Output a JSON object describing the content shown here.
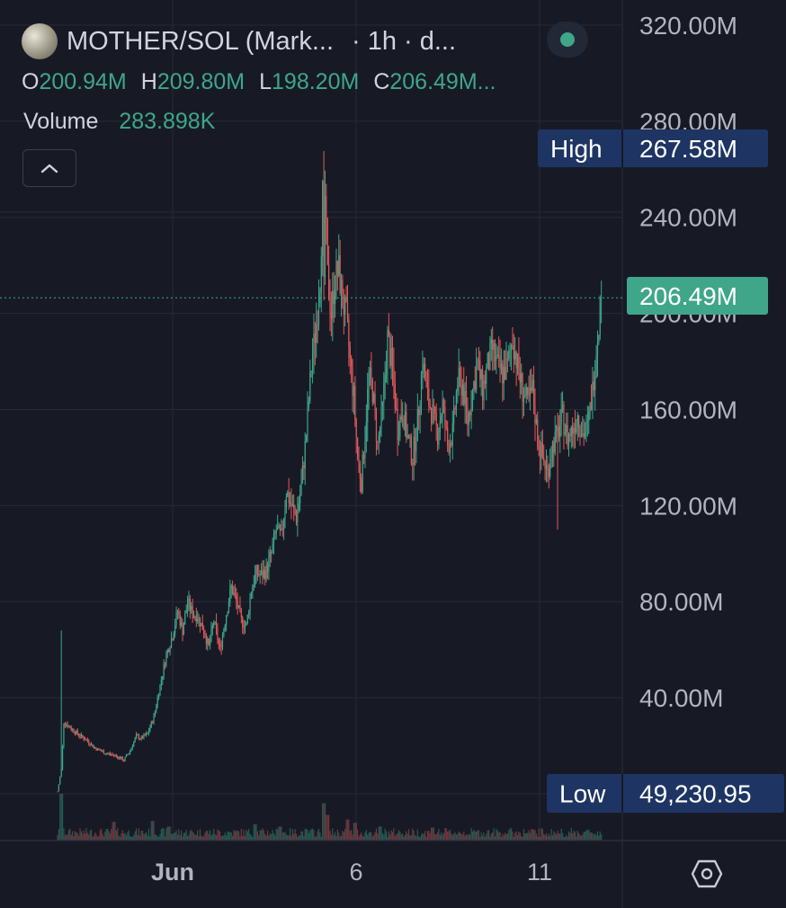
{
  "header": {
    "title": "MOTHER/SOL (Mark...",
    "interval": "· 1h · d...",
    "status_color": "#3fa68a"
  },
  "ohlc": [
    {
      "key": "O",
      "value": "200.94M"
    },
    {
      "key": "H",
      "value": "209.80M"
    },
    {
      "key": "L",
      "value": "198.20M"
    },
    {
      "key": "C",
      "value": "206.49M..."
    }
  ],
  "volume": {
    "label": "Volume",
    "value": "283.898K"
  },
  "colors": {
    "up": "#3fa68a",
    "down": "#e05a5a",
    "background": "#171a25",
    "grid": "#262a36",
    "marker": "#1e3564"
  },
  "icons": {
    "collapse": "chevron-up-icon",
    "settings": "hexagon-settings-icon"
  },
  "chart_data": {
    "type": "candlestick",
    "y_unit": "market cap (M)",
    "ylim": [
      0,
      320
    ],
    "y_ticks": [
      "320.00M",
      "280.00M",
      "240.00M",
      "160.00M",
      "120.00M",
      "80.00M",
      "40.00M"
    ],
    "y_tick_values": [
      320,
      280,
      240,
      160,
      120,
      80,
      40
    ],
    "x_ticks": [
      "Jun",
      "6",
      "11"
    ],
    "grid": true,
    "high": {
      "label": "High",
      "value": "267.58M",
      "price": 267.58
    },
    "low": {
      "label": "Low",
      "value": "49,230.95",
      "price": 0.049
    },
    "last": {
      "value": "206.49M",
      "price": 206.49
    },
    "hidden_tick": "200.00M",
    "path": [
      [
        0,
        1
      ],
      [
        3,
        10
      ],
      [
        5,
        30
      ],
      [
        9,
        28
      ],
      [
        16,
        25
      ],
      [
        24,
        22
      ],
      [
        30,
        19
      ],
      [
        38,
        17
      ],
      [
        46,
        16
      ],
      [
        53,
        14
      ],
      [
        58,
        18
      ],
      [
        63,
        24
      ],
      [
        67,
        23
      ],
      [
        72,
        25
      ],
      [
        77,
        32
      ],
      [
        82,
        45
      ],
      [
        87,
        58
      ],
      [
        92,
        66
      ],
      [
        96,
        76
      ],
      [
        100,
        68
      ],
      [
        104,
        80
      ],
      [
        108,
        75
      ],
      [
        112,
        74
      ],
      [
        117,
        68
      ],
      [
        121,
        61
      ],
      [
        125,
        72
      ],
      [
        130,
        60
      ],
      [
        135,
        75
      ],
      [
        139,
        86
      ],
      [
        143,
        80
      ],
      [
        147,
        72
      ],
      [
        151,
        70
      ],
      [
        155,
        85
      ],
      [
        159,
        92
      ],
      [
        163,
        91
      ],
      [
        167,
        93
      ],
      [
        171,
        100
      ],
      [
        175,
        110
      ],
      [
        179,
        107
      ],
      [
        183,
        126
      ],
      [
        187,
        120
      ],
      [
        191,
        115
      ],
      [
        195,
        128
      ],
      [
        199,
        150
      ],
      [
        203,
        178
      ],
      [
        207,
        196
      ],
      [
        210,
        215
      ],
      [
        213,
        265
      ],
      [
        216,
        215
      ],
      [
        219,
        200
      ],
      [
        222,
        215
      ],
      [
        225,
        218
      ],
      [
        228,
        205
      ],
      [
        231,
        198
      ],
      [
        234,
        180
      ],
      [
        237,
        165
      ],
      [
        240,
        140
      ],
      [
        243,
        130
      ],
      [
        246,
        150
      ],
      [
        249,
        174
      ],
      [
        252,
        168
      ],
      [
        256,
        145
      ],
      [
        260,
        160
      ],
      [
        264,
        190
      ],
      [
        268,
        176
      ],
      [
        272,
        152
      ],
      [
        276,
        160
      ],
      [
        280,
        148
      ],
      [
        284,
        140
      ],
      [
        288,
        155
      ],
      [
        292,
        180
      ],
      [
        296,
        165
      ],
      [
        300,
        158
      ],
      [
        304,
        150
      ],
      [
        308,
        162
      ],
      [
        312,
        145
      ],
      [
        316,
        150
      ],
      [
        320,
        172
      ],
      [
        324,
        170
      ],
      [
        328,
        155
      ],
      [
        332,
        168
      ],
      [
        336,
        179
      ],
      [
        340,
        168
      ],
      [
        344,
        178
      ],
      [
        348,
        185
      ],
      [
        352,
        178
      ],
      [
        356,
        175
      ],
      [
        360,
        178
      ],
      [
        364,
        190
      ],
      [
        368,
        178
      ],
      [
        372,
        168
      ],
      [
        376,
        162
      ],
      [
        380,
        168
      ],
      [
        384,
        148
      ],
      [
        388,
        140
      ],
      [
        392,
        134
      ],
      [
        396,
        145
      ],
      [
        400,
        150
      ],
      [
        404,
        157
      ],
      [
        408,
        148
      ],
      [
        412,
        152
      ],
      [
        416,
        158
      ],
      [
        420,
        150
      ],
      [
        424,
        152
      ],
      [
        428,
        168
      ],
      [
        432,
        192
      ],
      [
        435,
        208
      ]
    ],
    "volume_spikes": [
      [
        3,
        1.0
      ],
      [
        45,
        0.4
      ],
      [
        76,
        0.42
      ],
      [
        89,
        0.3
      ],
      [
        158,
        0.35
      ],
      [
        178,
        0.3
      ],
      [
        213,
        0.8
      ],
      [
        216,
        0.55
      ],
      [
        232,
        0.45
      ],
      [
        238,
        0.38
      ],
      [
        258,
        0.3
      ],
      [
        300,
        0.28
      ]
    ]
  }
}
